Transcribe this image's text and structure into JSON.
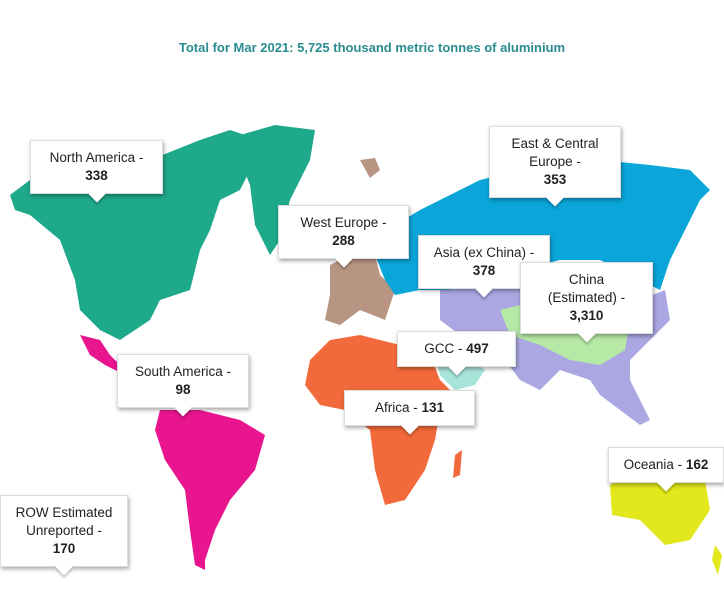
{
  "title": "Total for Mar 2021: 5,725 thousand metric tonnes of aluminium",
  "regions": [
    {
      "name": "North America -",
      "value": 338
    },
    {
      "name": "West Europe -",
      "value": 288
    },
    {
      "name": "East & Central Europe -",
      "value": 353
    },
    {
      "name": "Asia (ex China) -",
      "value": 378
    },
    {
      "name": "China (Estimated) -",
      "value": 3310,
      "value_label": "3,310"
    },
    {
      "name": "GCC -",
      "value": 497
    },
    {
      "name": "South America -",
      "value": 98
    },
    {
      "name": "Africa -",
      "value": 131
    },
    {
      "name": "Oceania -",
      "value": 162
    },
    {
      "name": "ROW Estimated Unreported -",
      "value": 170
    }
  ]
}
